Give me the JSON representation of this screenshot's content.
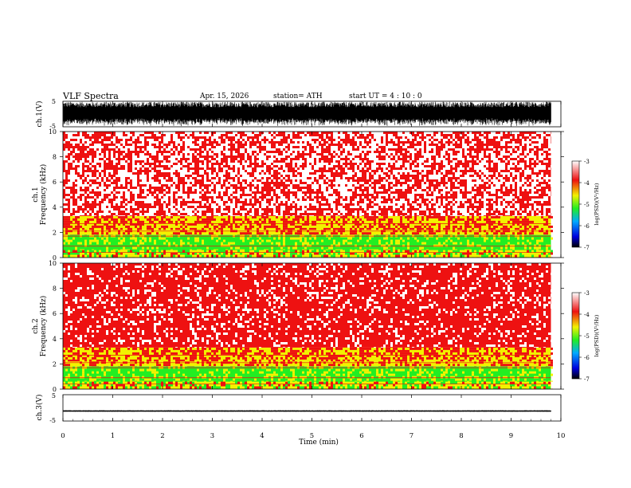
{
  "header": {
    "title": "VLF  Spectra",
    "date": "Apr. 15, 2026",
    "station": "station= ATH",
    "start_ut": "start  UT  =   4  : 10 : 0"
  },
  "chart_data": [
    {
      "type": "line",
      "name": "ch1-waveform",
      "ylabel": "ch.1(V)",
      "ylim": [
        -5,
        5
      ],
      "yticks": [
        "5",
        "-5"
      ],
      "xlim": [
        0,
        10
      ],
      "data_end_min": 9.8,
      "envelope_amplitude_v": 4.8,
      "colors": {
        "trace": "#000000"
      }
    },
    {
      "type": "heatmap",
      "name": "ch1-spectrogram",
      "ylabel_channel": "ch.1",
      "ylabel": "Frequency  (kHz)",
      "ylim": [
        0,
        10
      ],
      "yticks": [
        "0",
        "2",
        "4",
        "6",
        "8",
        "10"
      ],
      "xlim": [
        0,
        9.8
      ],
      "bands": [
        {
          "from_khz": 0.0,
          "to_khz": 0.6,
          "level": "yellow-green"
        },
        {
          "from_khz": 0.6,
          "to_khz": 1.8,
          "level": "green"
        },
        {
          "from_khz": 1.8,
          "to_khz": 2.2,
          "level": "yellow"
        },
        {
          "from_khz": 2.2,
          "to_khz": 3.3,
          "level": "yellow-red"
        },
        {
          "from_khz": 3.3,
          "to_khz": 10.0,
          "level": "red-white"
        }
      ],
      "colorbar": {
        "label": "log(PSD)(V²/Hz)",
        "ticks": [
          "-3",
          "-4",
          "-5",
          "-6",
          "-7"
        ],
        "range": [
          -7,
          -3
        ]
      }
    },
    {
      "type": "heatmap",
      "name": "ch2-spectrogram",
      "ylabel_channel": "ch.2",
      "ylabel": "Frequency  (kHz)",
      "ylim": [
        0,
        10
      ],
      "yticks": [
        "0",
        "2",
        "4",
        "6",
        "8",
        "10"
      ],
      "xlim": [
        0,
        9.8
      ],
      "bands": [
        {
          "from_khz": 0.0,
          "to_khz": 0.6,
          "level": "yellow-green"
        },
        {
          "from_khz": 0.6,
          "to_khz": 1.8,
          "level": "green"
        },
        {
          "from_khz": 1.8,
          "to_khz": 2.2,
          "level": "yellow"
        },
        {
          "from_khz": 2.2,
          "to_khz": 3.3,
          "level": "yellow-red"
        },
        {
          "from_khz": 3.3,
          "to_khz": 10.0,
          "level": "red"
        }
      ],
      "colorbar": {
        "label": "log(PSD)(V²/Hz)",
        "ticks": [
          "-3",
          "-4",
          "-5",
          "-6",
          "-7"
        ],
        "range": [
          -7,
          -3
        ]
      }
    },
    {
      "type": "line",
      "name": "ch3-waveform",
      "ylabel": "ch.3(V)",
      "ylim": [
        -5,
        5
      ],
      "yticks": [
        "5",
        "-5"
      ],
      "xlim": [
        0,
        10
      ],
      "data_end_min": 9.8,
      "constant_value_v": -1.2,
      "envelope_amplitude_v": 0.3,
      "colors": {
        "trace": "#000000"
      }
    }
  ],
  "xaxis": {
    "label": "Time  (min)",
    "ticks": [
      "0",
      "1",
      "2",
      "3",
      "4",
      "5",
      "6",
      "7",
      "8",
      "9",
      "10"
    ]
  },
  "colors": {
    "white": "#ffffff",
    "red": "#ee1111",
    "yellow": "#f2f200",
    "green": "#22ee22",
    "cyan": "#00aaff",
    "blue": "#0000dd",
    "black": "#000000"
  }
}
